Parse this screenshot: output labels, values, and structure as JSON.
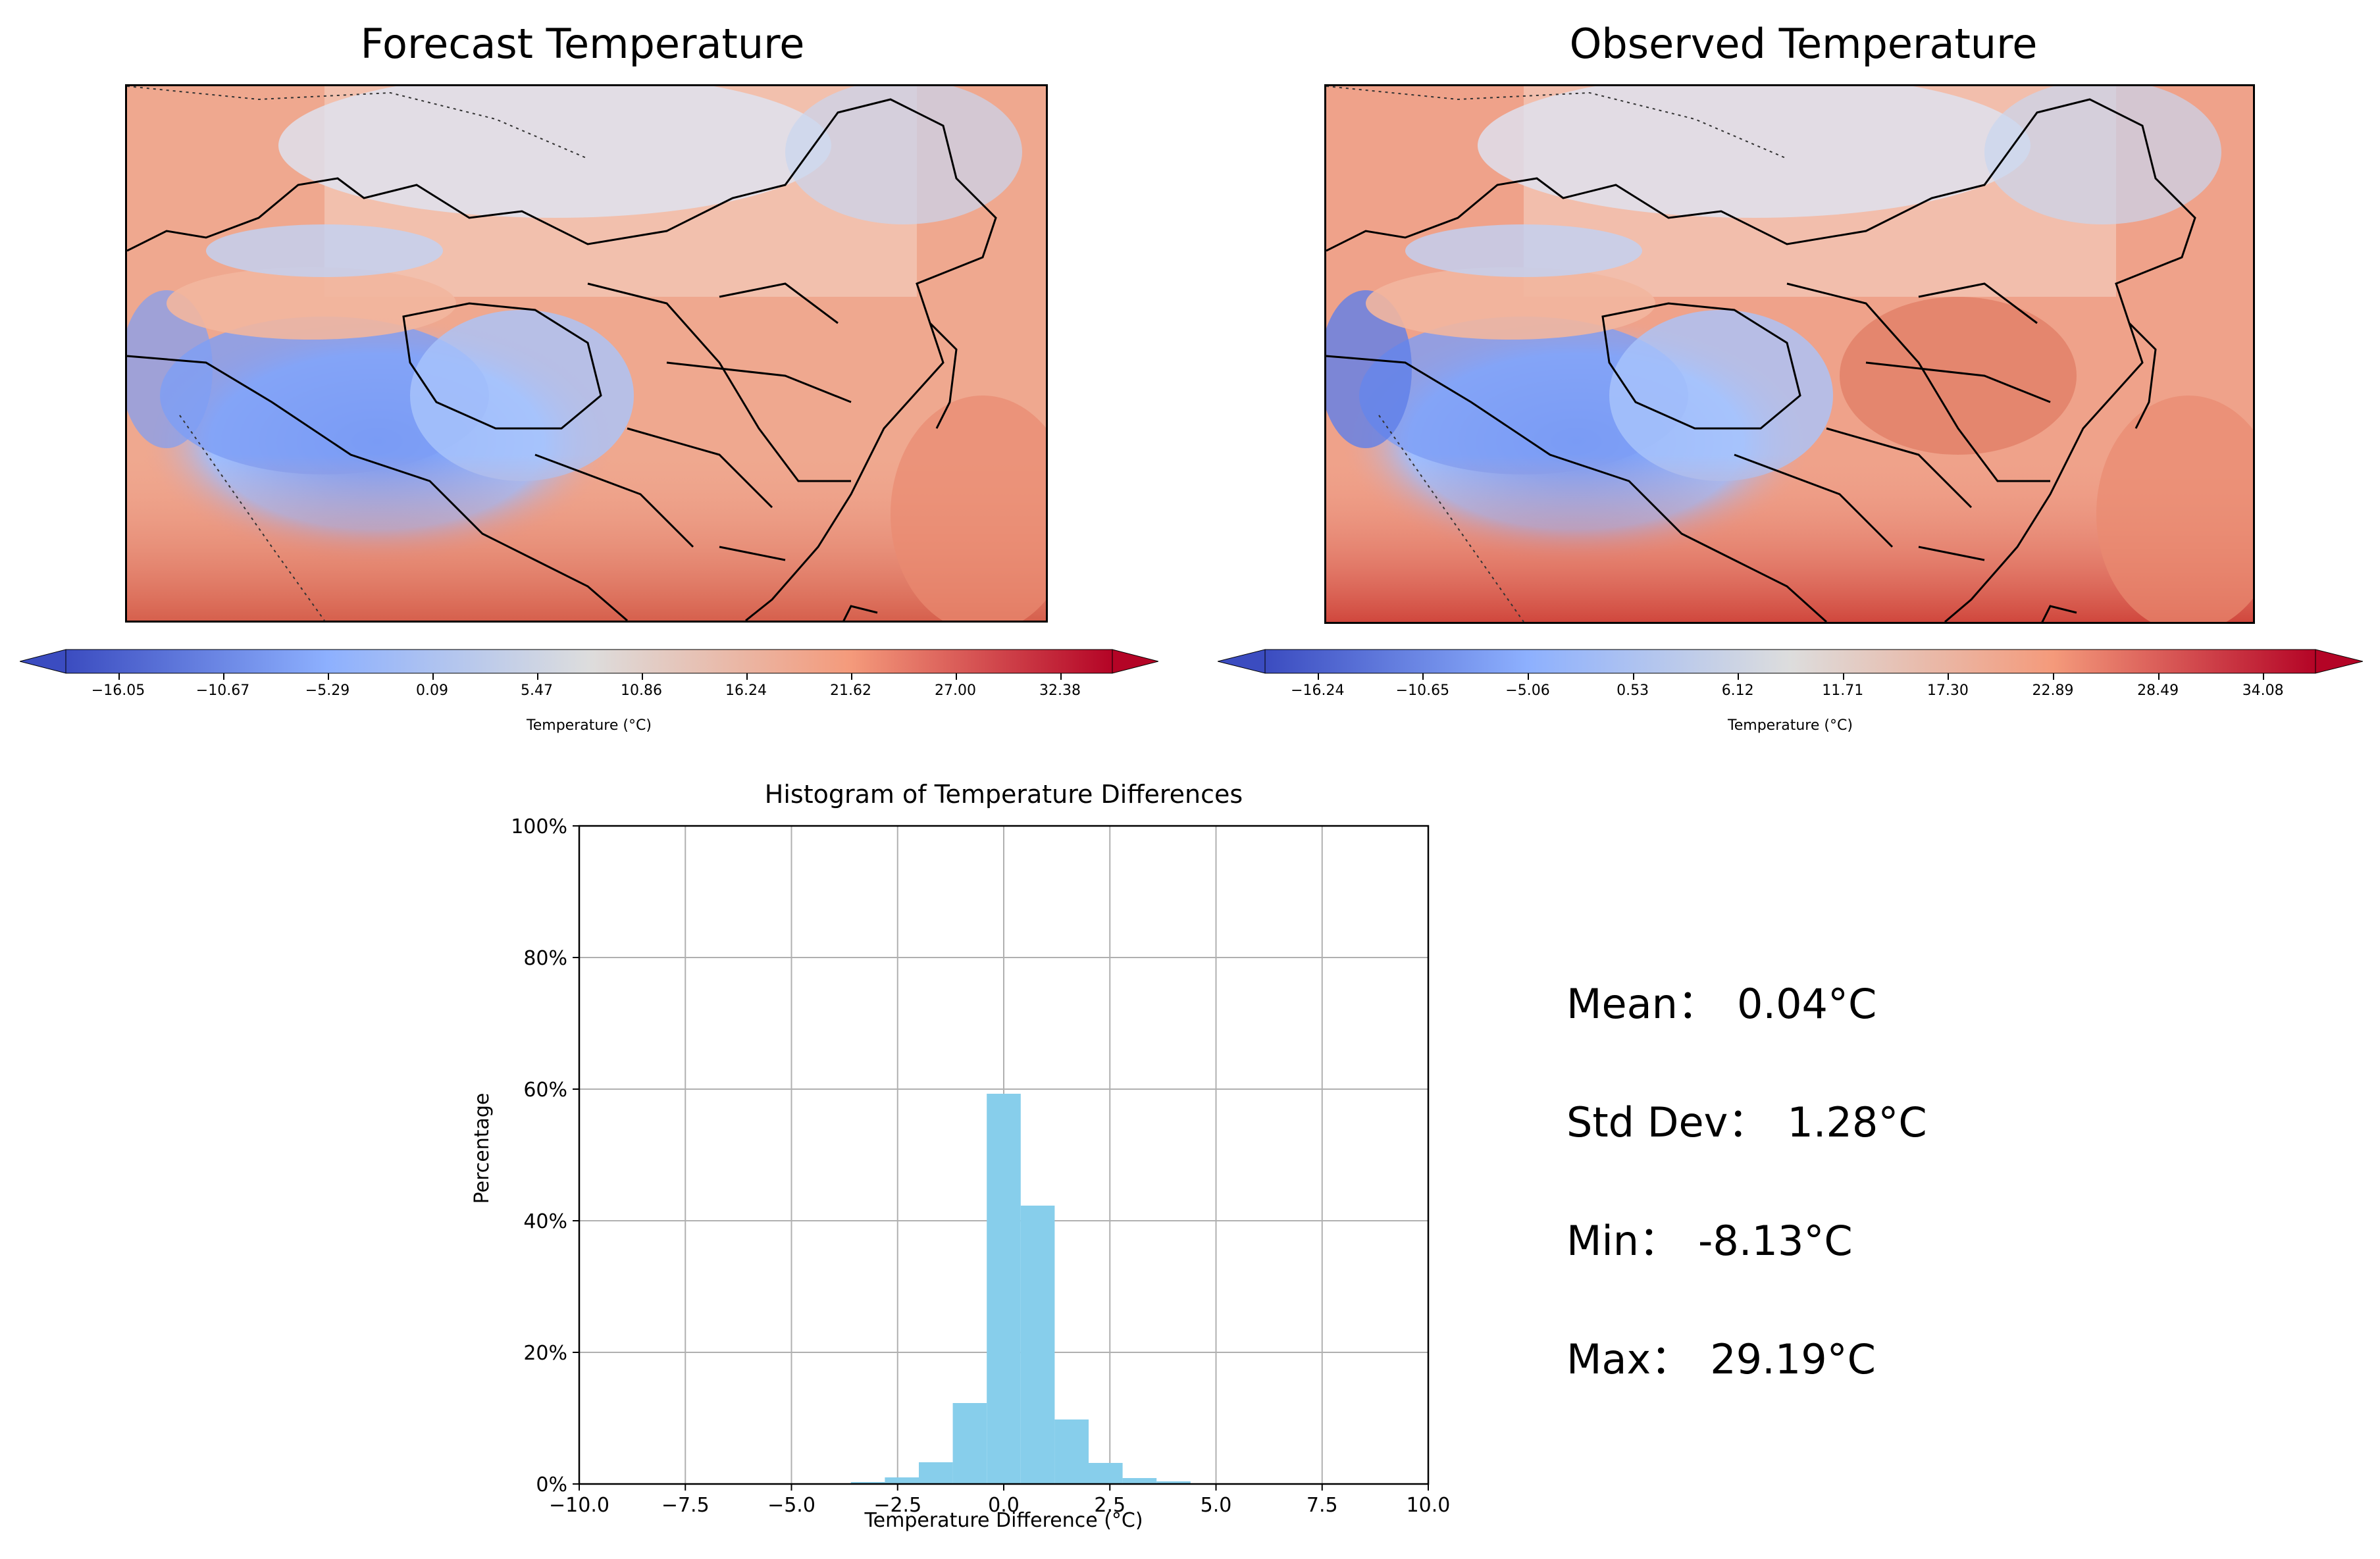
{
  "maps": [
    {
      "title": "Forecast Temperature",
      "colorbar": {
        "label": "Temperature (°C)",
        "ticks": [
          "−16.05",
          "−10.67",
          "−5.29",
          "0.09",
          "5.47",
          "10.86",
          "16.24",
          "21.62",
          "27.00",
          "32.38"
        ]
      }
    },
    {
      "title": "Observed Temperature",
      "colorbar": {
        "label": "Temperature (°C)",
        "ticks": [
          "−16.24",
          "−10.65",
          "−5.06",
          "0.53",
          "6.12",
          "11.71",
          "17.30",
          "22.89",
          "28.49",
          "34.08"
        ]
      }
    }
  ],
  "colors": {
    "cold": "#3b4cc0",
    "neutral": "#dddddd",
    "warm": "#b40426",
    "bar": "#87ceeb"
  },
  "stats": [
    {
      "label": "Mean：",
      "value": "0.04°C"
    },
    {
      "label": "Std Dev：",
      "value": "1.28°C"
    },
    {
      "label": "Min：",
      "value": "-8.13°C"
    },
    {
      "label": "Max：",
      "value": "29.19°C"
    }
  ],
  "chart_data": {
    "type": "bar",
    "title": "Histogram of Temperature Differences",
    "xlabel": "Temperature Difference (°C)",
    "ylabel": "Percentage",
    "xlim": [
      -10,
      10
    ],
    "ylim": [
      0,
      100
    ],
    "xticks": [
      -10,
      -7.5,
      -5,
      -2.5,
      0,
      2.5,
      5,
      7.5,
      10
    ],
    "xtick_labels": [
      "−10.0",
      "−7.5",
      "−5.0",
      "−2.5",
      "0.0",
      "2.5",
      "5.0",
      "7.5",
      "10.0"
    ],
    "yticks": [
      0,
      20,
      40,
      60,
      80,
      100
    ],
    "ytick_labels": [
      "0%",
      "20%",
      "40%",
      "60%",
      "80%",
      "100%"
    ],
    "grid": true,
    "bins": [
      {
        "x0": -4.4,
        "x1": -3.6,
        "value": 0.1
      },
      {
        "x0": -3.6,
        "x1": -2.8,
        "value": 0.3
      },
      {
        "x0": -2.8,
        "x1": -2.0,
        "value": 1.0
      },
      {
        "x0": -2.0,
        "x1": -1.2,
        "value": 3.3
      },
      {
        "x0": -1.2,
        "x1": -0.4,
        "value": 12.3
      },
      {
        "x0": -0.4,
        "x1": 0.4,
        "value": 59.3
      },
      {
        "x0": 0.4,
        "x1": 1.2,
        "value": 42.3
      },
      {
        "x0": 1.2,
        "x1": 2.0,
        "value": 9.8
      },
      {
        "x0": 2.0,
        "x1": 2.8,
        "value": 3.2
      },
      {
        "x0": 2.8,
        "x1": 3.6,
        "value": 0.9
      },
      {
        "x0": 3.6,
        "x1": 4.4,
        "value": 0.4
      }
    ]
  }
}
